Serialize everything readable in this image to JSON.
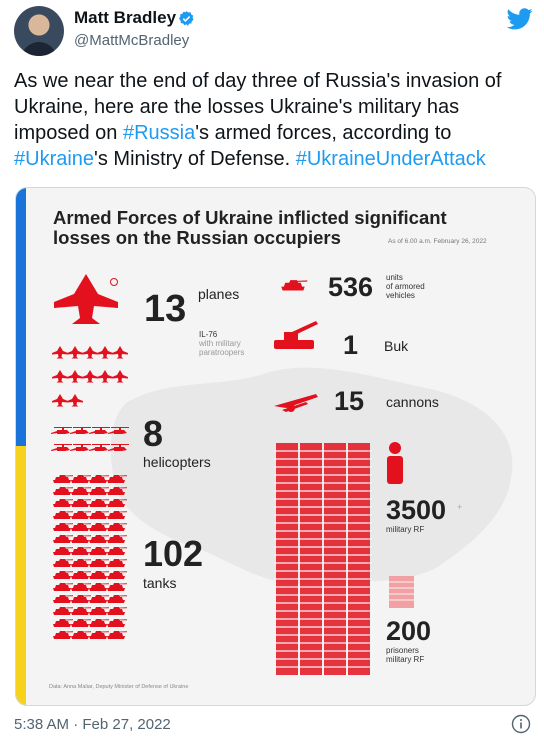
{
  "author": {
    "name": "Matt Bradley",
    "handle": "@MattMcBradley"
  },
  "tweet": {
    "part1": "As we near the end of day three of Russia's invasion of Ukraine, here are the losses Ukraine's military has imposed on ",
    "tag1": "#Russia",
    "part2": "'s armed forces, according to ",
    "tag2": "#Ukraine",
    "part3": "'s Ministry of Defense. ",
    "tag3": "#UkraineUnderAttack"
  },
  "infographic": {
    "title_line1": "Armed Forces of Ukraine inflicted significant",
    "title_line2": "losses on the Russian occupiers",
    "date": "As of 6.00 a.m. February 26, 2022",
    "planes_num": "13",
    "planes_label": "planes",
    "il76_line1": "IL-76",
    "il76_line2": "with military",
    "il76_line3": "paratroopers",
    "helicopters_num": "8",
    "helicopters_label": "helicopters",
    "tanks_num": "102",
    "tanks_label": "tanks",
    "armored_num": "536",
    "armored_line1": "units",
    "armored_line2": "of armored",
    "armored_line3": "vehicles",
    "buk_num": "1",
    "buk_label": "Buk",
    "cannons_num": "15",
    "cannons_label": "cannons",
    "personnel_num": "3500",
    "personnel_label": "military RF",
    "prisoners_num": "200",
    "prisoners_line1": "prisoners",
    "prisoners_line2": "military RF",
    "source": "Data: Anna Maliar, Deputy Minister of Defense of Ukraine",
    "colors": {
      "red": "#e3101d",
      "blue": "#1a73d9",
      "yellow": "#f7d21c"
    }
  },
  "footer": {
    "timestamp": "5:38 AM · Feb 27, 2022"
  },
  "icons": [
    "verified-badge-icon",
    "twitter-bird-icon",
    "info-icon"
  ]
}
